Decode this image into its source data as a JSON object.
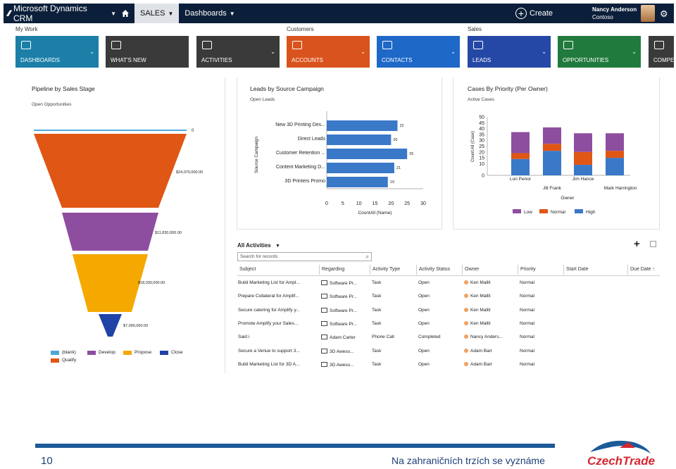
{
  "nav": {
    "brand": "Microsoft Dynamics CRM",
    "active_tab": "SALES",
    "tab2": "Dashboards",
    "create": "Create",
    "user_name": "Nancy Anderson",
    "user_org": "Contoso"
  },
  "groups": [
    "My Work",
    "Customers",
    "Sales"
  ],
  "tiles": [
    {
      "label": "DASHBOARDS",
      "color": "#1b7fa8",
      "icon": "dashboard-icon"
    },
    {
      "label": "WHAT'S NEW",
      "color": "#3a3a3a",
      "icon": "chat-icon"
    },
    {
      "label": "ACTIVITIES",
      "color": "#3a3a3a",
      "icon": "clipboard-icon"
    },
    {
      "label": "ACCOUNTS",
      "color": "#d9531e",
      "icon": "building-icon"
    },
    {
      "label": "CONTACTS",
      "color": "#1e68c8",
      "icon": "contact-card-icon"
    },
    {
      "label": "LEADS",
      "color": "#2548a6",
      "icon": "phone-icon"
    },
    {
      "label": "OPPORTUNITIES",
      "color": "#217a3d",
      "icon": "opportunity-icon"
    },
    {
      "label": "COMPE",
      "color": "#3a3a3a",
      "icon": "people-icon"
    }
  ],
  "funnel": {
    "title": "Pipeline by Sales Stage",
    "subtitle": "Open Opportunities",
    "labels": [
      "0",
      "$24,070,000.00",
      "$11,830,000.00",
      "$18,030,000.00",
      "$7,090,000.00"
    ],
    "legend": [
      {
        "name": "(blank)",
        "color": "#4ea7d9"
      },
      {
        "name": "Develop",
        "color": "#8e4ea0"
      },
      {
        "name": "Propose",
        "color": "#f5a800"
      },
      {
        "name": "Close",
        "color": "#1f43a6"
      },
      {
        "name": "Qualify",
        "color": "#e05614"
      }
    ]
  },
  "chart_data": [
    {
      "type": "bar",
      "orientation": "horizontal",
      "title": "Leads by Source Campaign",
      "subtitle": "Open Leads",
      "xlabel": "CountAll (Name)",
      "ylabel": "Source Campaign",
      "categories": [
        "New 3D Printing Des...",
        "Direct Leads",
        "Customer Retention ...",
        "Content Marketing D...",
        "3D Printers Promo"
      ],
      "values": [
        22,
        20,
        25,
        21,
        19
      ],
      "xlim": [
        0,
        30
      ],
      "xticks": [
        "0",
        "5",
        "10",
        "15",
        "20",
        "25",
        "30"
      ],
      "color": "#3a78c8"
    },
    {
      "type": "bar",
      "stacked": true,
      "title": "Cases By Priority (Per Owner)",
      "subtitle": "Active Cases",
      "xlabel": "Owner",
      "ylabel": "Count:All (Case)",
      "categories": [
        "Lori Penor",
        "Jill Frank",
        "Jim Hance",
        "Mark Harrington"
      ],
      "series": [
        {
          "name": "High",
          "color": "#3a78c8",
          "values": [
            14,
            21,
            9,
            15
          ]
        },
        {
          "name": "Normal",
          "color": "#e05614",
          "values": [
            5,
            6,
            11,
            6
          ]
        },
        {
          "name": "Low",
          "color": "#8e4ea0",
          "values": [
            18,
            14,
            16,
            15
          ]
        }
      ],
      "ylim": [
        0,
        50
      ],
      "yticks": [
        "0",
        "10",
        "20",
        "30",
        "40",
        "50"
      ],
      "yticks_minor": [
        "15",
        "25",
        "35",
        "45"
      ]
    }
  ],
  "activities": {
    "title": "All Activities",
    "search_placeholder": "Search for records",
    "columns": [
      "Subject",
      "Regarding",
      "Activity Type",
      "Activity Status",
      "Owner",
      "Priority",
      "Start Date",
      "Due Date ↑"
    ],
    "rows": [
      [
        "Build Marketing List for Ampl...",
        "Software Pr...",
        "Task",
        "Open",
        "Ken Mallit",
        "Normal"
      ],
      [
        "Prepare Collateral for Amplif...",
        "Software Pr...",
        "Task",
        "Open",
        "Ken Mallit",
        "Normal"
      ],
      [
        "Secure catering for Amplify y...",
        "Software Pr...",
        "Task",
        "Open",
        "Ken Mallit",
        "Normal"
      ],
      [
        "Promote Amplify your Sales...",
        "Software Pr...",
        "Task",
        "Open",
        "Ken Mallit",
        "Normal"
      ],
      [
        "Said i",
        "Adam Carter",
        "Phone Call",
        "Completed",
        "Nancy Anders...",
        "Normal"
      ],
      [
        "Secure a Venue to support 3...",
        "3D Aweso...",
        "Task",
        "Open",
        "Adam Barr",
        "Normal"
      ],
      [
        "Build Marketing List for 3D A...",
        "3D Aweso...",
        "Task",
        "Open",
        "Adam Barr",
        "Normal"
      ]
    ]
  },
  "footer": {
    "page": "10",
    "slogan": "Na zahraničních trzích se vyznáme",
    "logo": "CzechTrade"
  }
}
